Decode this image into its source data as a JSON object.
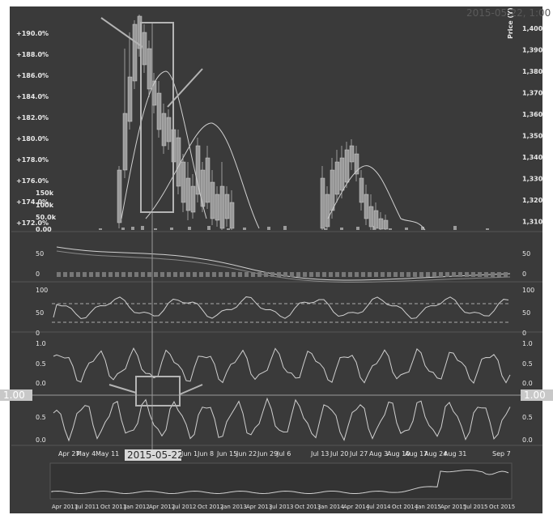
{
  "header": {
    "timestamp": "2015-05-22, 1:00"
  },
  "price_panel": {
    "left_ticks": [
      "+190.0%",
      "+188.0%",
      "+186.0%",
      "+184.0%",
      "+182.0%",
      "+180.0%",
      "+178.0%",
      "+176.0%",
      "+174.0%",
      "+172.0%"
    ],
    "right_ticks": [
      "1,400",
      "1,390",
      "1,380",
      "1,370",
      "1,360",
      "1,350",
      "1,340",
      "1,330",
      "1,320",
      "1,310"
    ],
    "right_axis_label": "Price (Y)",
    "volume_ticks": [
      "150k",
      "100k",
      "50.0k",
      "0.00"
    ]
  },
  "oscillator_1": {
    "ticks": [
      "50",
      "0"
    ]
  },
  "oscillator_2": {
    "ticks": [
      "100",
      "50",
      "0"
    ]
  },
  "oscillator_3": {
    "ticks": [
      "1.0",
      "0.5",
      "0.0"
    ]
  },
  "oscillator_4": {
    "ticks": [
      "0.5",
      "0.0"
    ]
  },
  "crosshair": {
    "left_label": "1.00",
    "right_label": "1.00",
    "date_label": "2015-05-22"
  },
  "time_axis": {
    "labels": [
      "Apr 27",
      "May 4",
      "May 11",
      "Jun 1",
      "Jun 8",
      "Jun 15",
      "Jun 22",
      "Jun 29",
      "Jul 6",
      "Jul 13",
      "Jul 20",
      "Jul 27",
      "Aug 3",
      "Aug 10",
      "Aug 17",
      "Aug 24",
      "Aug 31",
      "Sep 7"
    ]
  },
  "navigator_axis": {
    "labels": [
      "Apr 2011",
      "Jul 2011",
      "Oct 2011",
      "Jan 2012",
      "Apr 2012",
      "Jul 2012",
      "Oct 2012",
      "Jan 2013",
      "Apr 2013",
      "Jul 2013",
      "Oct 2013",
      "Jan 2014",
      "Apr 2014",
      "Jul 2014",
      "Oct 2014",
      "Jan 2015",
      "Apr 2015",
      "Jul 2015",
      "Oct 2015"
    ]
  },
  "colors": {
    "background": "#3a3a3a",
    "candle": "#9a9a9a",
    "line": "#d0d0d0",
    "annotation": "#b4b4b4"
  }
}
